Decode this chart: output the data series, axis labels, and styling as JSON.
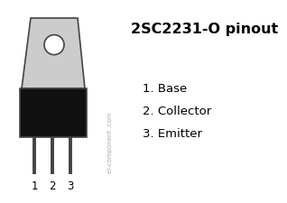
{
  "title": "2SC2231-O pinout",
  "pin1": "1. Base",
  "pin2": "2. Collector",
  "pin3": "3. Emitter",
  "watermark": "el-component .com",
  "bg_color": "#ffffff",
  "body_color": "#111111",
  "tab_color": "#cccccc",
  "outline_color": "#444444",
  "pin_labels": [
    "1",
    "2",
    "3"
  ],
  "title_fontsize": 11.5,
  "pin_fontsize": 9.5,
  "label_fontsize": 8.5,
  "watermark_fontsize": 5.0
}
